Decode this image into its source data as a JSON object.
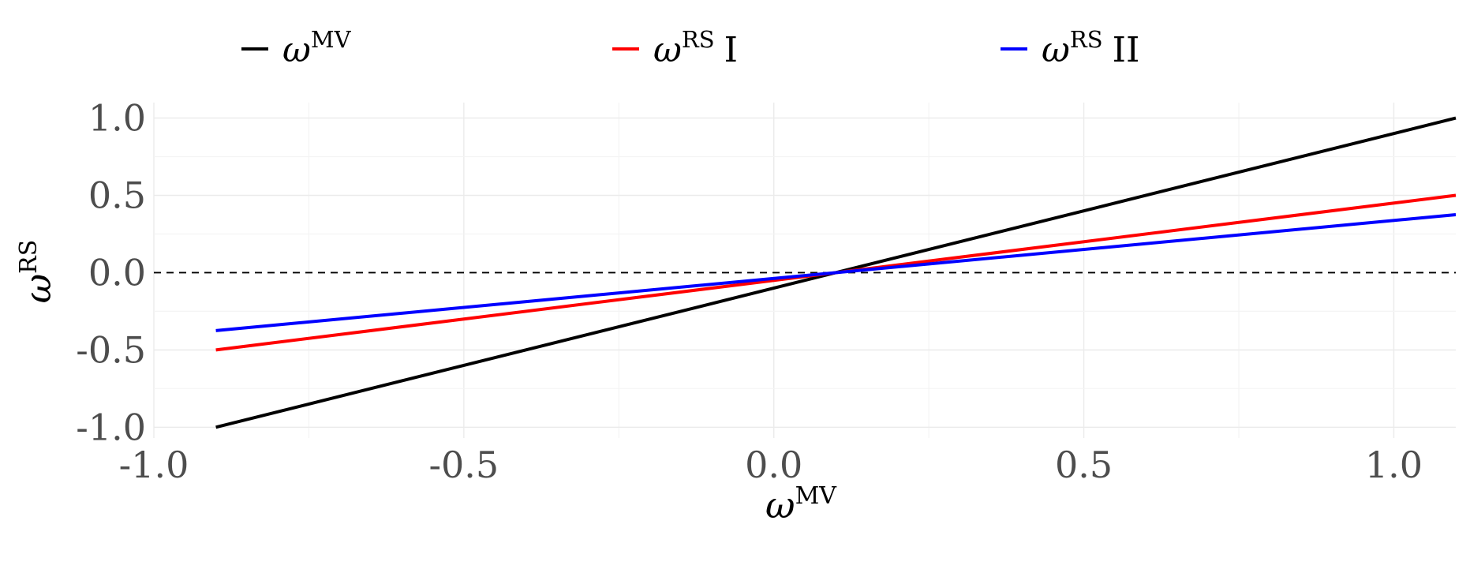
{
  "chart_data": {
    "type": "line",
    "xlabel": {
      "base": "ω",
      "sup": "MV"
    },
    "ylabel": {
      "base": "ω",
      "sup": "RS"
    },
    "xlim": [
      -1.0,
      1.1
    ],
    "ylim": [
      -1.07,
      1.1
    ],
    "x_ticks": [
      -1.0,
      -0.5,
      0.0,
      0.5,
      1.0
    ],
    "x_tick_labels": [
      "-1.0",
      "-0.5",
      "0.0",
      "0.5",
      "1.0"
    ],
    "y_ticks": [
      -1.0,
      -0.5,
      0.0,
      0.5,
      1.0
    ],
    "y_tick_labels": [
      "-1.0",
      "-0.5",
      "0.0",
      "0.5",
      "1.0"
    ],
    "grid": true,
    "legend_position": "top",
    "reference_line": {
      "y": 0.0,
      "style": "dashed",
      "color": "#000000"
    },
    "series": [
      {
        "name": {
          "base": "ω",
          "sup": "MV",
          "suffix": ""
        },
        "color": "#000000",
        "x": [
          -0.9,
          1.1
        ],
        "y": [
          -1.0,
          1.0
        ]
      },
      {
        "name": {
          "base": "ω",
          "sup": "RS",
          "suffix": "I"
        },
        "color": "#ff0000",
        "x": [
          -0.9,
          1.1
        ],
        "y": [
          -0.5,
          0.5
        ]
      },
      {
        "name": {
          "base": "ω",
          "sup": "RS",
          "suffix": "II"
        },
        "color": "#0000ff",
        "x": [
          -0.9,
          1.1
        ],
        "y": [
          -0.375,
          0.375
        ]
      }
    ]
  }
}
